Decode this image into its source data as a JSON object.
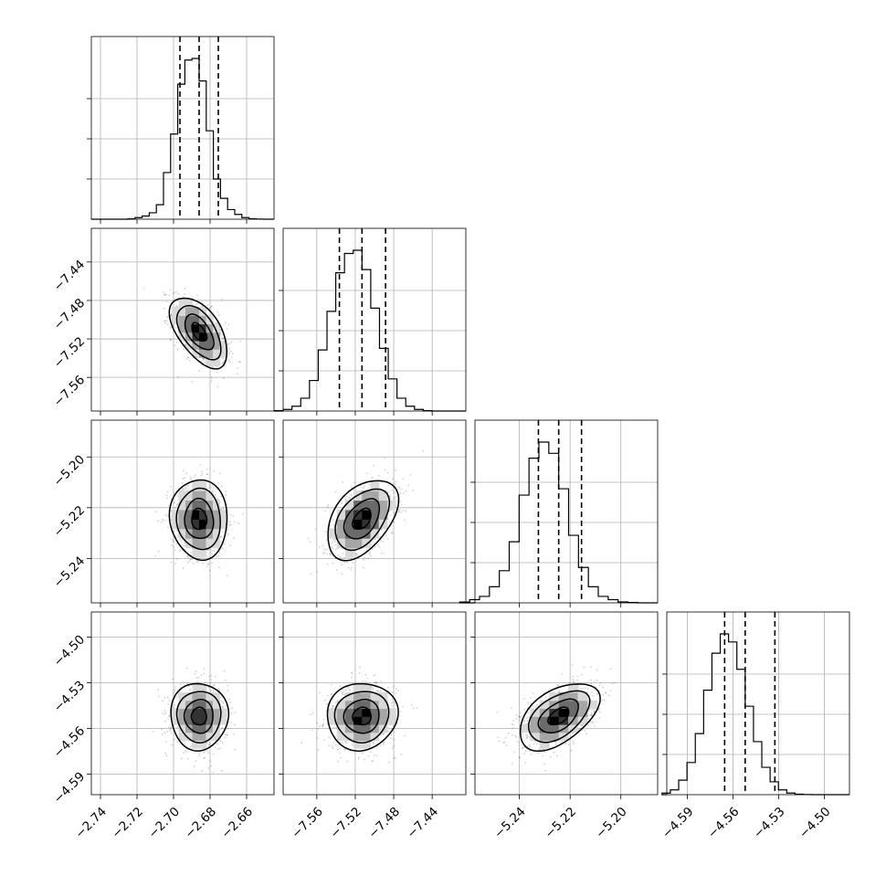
{
  "chart_data": {
    "type": "corner",
    "title": "",
    "grid": true,
    "colors": {
      "line": "#000000",
      "grid": "#b0b0b0",
      "density": [
        "#ffffff",
        "#d9d9d9",
        "#a6a6a6",
        "#6b6b6b",
        "#333333",
        "#000000"
      ]
    },
    "parameters": [
      {
        "index": 0,
        "median": -2.686,
        "std": 0.0075,
        "quantiles": [
          -2.6965,
          -2.686,
          -2.6755
        ],
        "range": [
          -2.745,
          -2.645
        ],
        "ticks": [
          -2.74,
          -2.72,
          -2.7,
          -2.68,
          -2.66
        ],
        "tick_labels": [
          "−2.74",
          "−2.72",
          "−2.70",
          "−2.68",
          "−2.66"
        ],
        "histogram": [
          0.002,
          0.01,
          0.02,
          0.04,
          0.09,
          0.29,
          0.53,
          0.84,
          0.99,
          1.0,
          0.86,
          0.55,
          0.25,
          0.13,
          0.06,
          0.03,
          0.01,
          0.003,
          0.001,
          0.0
        ]
      },
      {
        "index": 1,
        "median": -7.513,
        "std": 0.0175,
        "quantiles": [
          -7.5365,
          -7.513,
          -7.4885
        ],
        "range": [
          -7.595,
          -7.405
        ],
        "ticks": [
          -7.56,
          -7.52,
          -7.48,
          -7.44
        ],
        "tick_labels": [
          "−7.56",
          "−7.52",
          "−7.48",
          "−7.44"
        ],
        "histogram": [
          0.002,
          0.01,
          0.03,
          0.08,
          0.19,
          0.38,
          0.62,
          0.86,
          0.98,
          1.0,
          0.88,
          0.64,
          0.39,
          0.2,
          0.08,
          0.03,
          0.01,
          0.002,
          0.0,
          0.0
        ]
      },
      {
        "index": 2,
        "median": -5.2245,
        "std": 0.0075,
        "quantiles": [
          -5.2325,
          -5.2245,
          -5.2155
        ],
        "range": [
          -5.2575,
          -5.1855
        ],
        "ticks": [
          -5.24,
          -5.22,
          -5.2
        ],
        "tick_labels": [
          "−5.24",
          "−5.22",
          "−5.20"
        ],
        "histogram": [
          0.005,
          0.02,
          0.04,
          0.1,
          0.2,
          0.38,
          0.67,
          0.9,
          1.0,
          0.93,
          0.71,
          0.42,
          0.22,
          0.1,
          0.04,
          0.02,
          0.006,
          0.002,
          0.0,
          0.0
        ]
      },
      {
        "index": 3,
        "median": -4.552,
        "std": 0.0105,
        "quantiles": [
          -4.5655,
          -4.552,
          -4.5325
        ],
        "range": [
          -4.6035,
          -4.4835
        ],
        "ticks": [
          -4.59,
          -4.56,
          -4.53,
          -4.5
        ],
        "tick_labels": [
          "−4.59",
          "−4.56",
          "−4.53",
          "−4.50"
        ],
        "histogram": [
          0.01,
          0.03,
          0.09,
          0.2,
          0.38,
          0.65,
          0.88,
          1.0,
          0.95,
          0.78,
          0.55,
          0.33,
          0.17,
          0.08,
          0.03,
          0.01,
          0.003,
          0.001,
          0.0,
          0.0
        ]
      }
    ],
    "correlations": [
      {
        "row": 1,
        "col": 0,
        "rho": -0.55
      },
      {
        "row": 2,
        "col": 0,
        "rho": -0.05
      },
      {
        "row": 2,
        "col": 1,
        "rho": 0.45
      },
      {
        "row": 3,
        "col": 0,
        "rho": 0.0
      },
      {
        "row": 3,
        "col": 1,
        "rho": 0.05
      },
      {
        "row": 3,
        "col": 2,
        "rho": 0.5
      }
    ]
  }
}
